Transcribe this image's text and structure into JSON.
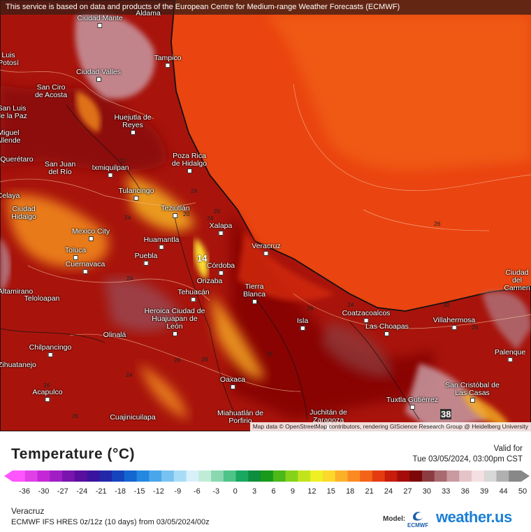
{
  "banner": "This service is based on data and products of the European Centre for Medium-range Weather Forecasts (ECMWF)",
  "attribution": "Map data © OpenStreetMap contributors, rendering GIScience Research Group @ Heidelberg University",
  "title": "Temperature (°C)",
  "valid_label": "Valid for",
  "valid_time": "Tue 03/05/2024, 03:00pm CST",
  "location": "Veracruz",
  "model_run": "ECMWF IFS HRES 0z/12z (10 days) from 03/05/2024/00z",
  "model_label": "Model:",
  "ecmwf_logo_text": "ECMWF",
  "brand": "weather.us",
  "scale_ticks": [
    "-36",
    "-30",
    "-27",
    "-24",
    "-21",
    "-18",
    "-15",
    "-12",
    "-9",
    "-6",
    "-3",
    "0",
    "3",
    "6",
    "9",
    "12",
    "15",
    "18",
    "21",
    "24",
    "27",
    "30",
    "33",
    "36",
    "39",
    "44",
    "50"
  ],
  "scale_colors": [
    "#ff55ff",
    "#e040e8",
    "#c428d6",
    "#a01ec4",
    "#7a14ae",
    "#5a0e9e",
    "#3a149e",
    "#2228a8",
    "#1444be",
    "#1466d0",
    "#2488e0",
    "#4aa6ea",
    "#78c2f2",
    "#a8dcf6",
    "#d8f0fa",
    "#c0ecd6",
    "#8ad8b0",
    "#4ec488",
    "#18a860",
    "#0c8e3e",
    "#1a9a1a",
    "#4cb81a",
    "#86d21a",
    "#c2e41c",
    "#eef024",
    "#fcd82a",
    "#fcb02a",
    "#fc8a22",
    "#f46418",
    "#e43c10",
    "#c81c0c",
    "#a40c0c",
    "#7c0808",
    "#8c3c40",
    "#a86a70",
    "#c89aa0",
    "#e4c4c8",
    "#f4e0e2",
    "#d8d8d8",
    "#b0b0b0",
    "#888888"
  ],
  "isotherm_labels": [
    "22",
    "24",
    "20",
    "24",
    "26",
    "26",
    "26",
    "24",
    "28",
    "26",
    "24",
    "26",
    "30",
    "30",
    "24",
    "26",
    "26",
    "26",
    "24"
  ],
  "cities": [
    {
      "name": "Ciudad Mante"
    },
    {
      "name": "Tampico"
    },
    {
      "name": "Aldama"
    },
    {
      "name": "Ciudad Valles"
    },
    {
      "name": "San Ciro de Acosta"
    },
    {
      "name": "Luis Potosí"
    },
    {
      "name": "San Luis de la Paz"
    },
    {
      "name": "Miguel Allende"
    },
    {
      "name": "Huejutla de Reyes"
    },
    {
      "name": "Poza Rica de Hidalgo"
    },
    {
      "name": "Querétaro"
    },
    {
      "name": "San Juan del Río"
    },
    {
      "name": "Ixmiquilpan"
    },
    {
      "name": "Tulancingo"
    },
    {
      "name": "Celaya"
    },
    {
      "name": "Teziutlán"
    },
    {
      "name": "Xalapa"
    },
    {
      "name": "Ciudad Hidalgo"
    },
    {
      "name": "Mexico City"
    },
    {
      "name": "Toluca"
    },
    {
      "name": "Cuernavaca"
    },
    {
      "name": "Huamantla"
    },
    {
      "name": "Puebla"
    },
    {
      "name": "Veracruz"
    },
    {
      "name": "Córdoba"
    },
    {
      "name": "Orizaba"
    },
    {
      "name": "Tierra Blanca"
    },
    {
      "name": "Tehuacán"
    },
    {
      "name": "Teloloapan"
    },
    {
      "name": "Heroica Ciudad de Huajuapan de León"
    },
    {
      "name": "Olinalá"
    },
    {
      "name": "Chilpancingo"
    },
    {
      "name": "Acapulco"
    },
    {
      "name": "Cuajinicuilapa"
    },
    {
      "name": "Oaxaca"
    },
    {
      "name": "Miahuatlán de Porfirio"
    },
    {
      "name": "Juchitán de Zaragoza"
    },
    {
      "name": "Tuxtla Gutiérrez"
    },
    {
      "name": "San Cristóbal de Las Casas"
    },
    {
      "name": "Coatzacoalcos"
    },
    {
      "name": "Las Choapas"
    },
    {
      "name": "Villahermosa"
    },
    {
      "name": "Isla"
    },
    {
      "name": "Palenque"
    },
    {
      "name": "Ciudad del Carmen"
    },
    {
      "name": "Zihuatanejo"
    },
    {
      "name": "Altamirano"
    }
  ],
  "map_values": {
    "min_marker": "14",
    "max_marker": "38"
  }
}
